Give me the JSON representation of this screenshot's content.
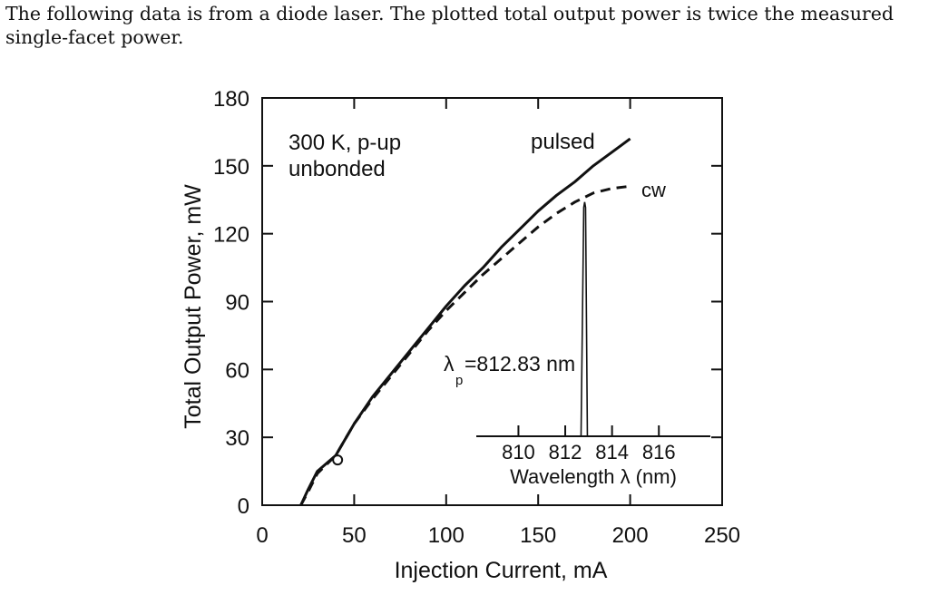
{
  "intro_text": "The following data is from a diode laser.  The plotted total output power is twice the measured single-facet power.",
  "chart_data": {
    "type": "line",
    "xlabel": "Injection Current, mA",
    "ylabel": "Total Output Power, mW",
    "xlim": [
      0,
      250
    ],
    "ylim": [
      0,
      180
    ],
    "x_ticks": [
      "0",
      "50",
      "100",
      "150",
      "200",
      "250"
    ],
    "y_ticks": [
      "0",
      "30",
      "60",
      "90",
      "120",
      "150",
      "180"
    ],
    "grid": false,
    "annotations": {
      "condition": [
        "300 K, p-up",
        "unbonded"
      ],
      "peak_wavelength_prefix": "λ",
      "peak_wavelength_sub": "p",
      "peak_wavelength_value": "=812.83 nm",
      "marked_point": {
        "x": 41,
        "y": 20
      }
    },
    "series": [
      {
        "name": "pulsed",
        "style": "solid",
        "x": [
          21,
          25,
          30,
          40,
          50,
          60,
          70,
          80,
          90,
          100,
          110,
          120,
          130,
          140,
          150,
          160,
          170,
          180,
          190,
          195,
          200
        ],
        "y": [
          0,
          7,
          15,
          22,
          36,
          48,
          58,
          68,
          78,
          88,
          97,
          105,
          114,
          122,
          130,
          137,
          143,
          150,
          156,
          159,
          162
        ]
      },
      {
        "name": "cw",
        "style": "dashed",
        "x": [
          21,
          25,
          30,
          40,
          50,
          60,
          70,
          80,
          90,
          100,
          110,
          120,
          130,
          140,
          150,
          160,
          170,
          180,
          190,
          200
        ],
        "y": [
          0,
          6,
          14,
          22,
          36,
          47,
          57,
          67,
          77,
          86,
          94,
          102,
          109,
          116,
          123,
          129,
          134,
          138,
          140,
          141
        ]
      }
    ],
    "inset": {
      "type": "spectrum",
      "xlabel": "Wavelength λ (nm)",
      "x_ticks": [
        "810",
        "812",
        "814",
        "816"
      ],
      "xlim": [
        808.2,
        818.2
      ],
      "peak": 812.83,
      "peak_label": "λp=812.83 nm"
    }
  }
}
